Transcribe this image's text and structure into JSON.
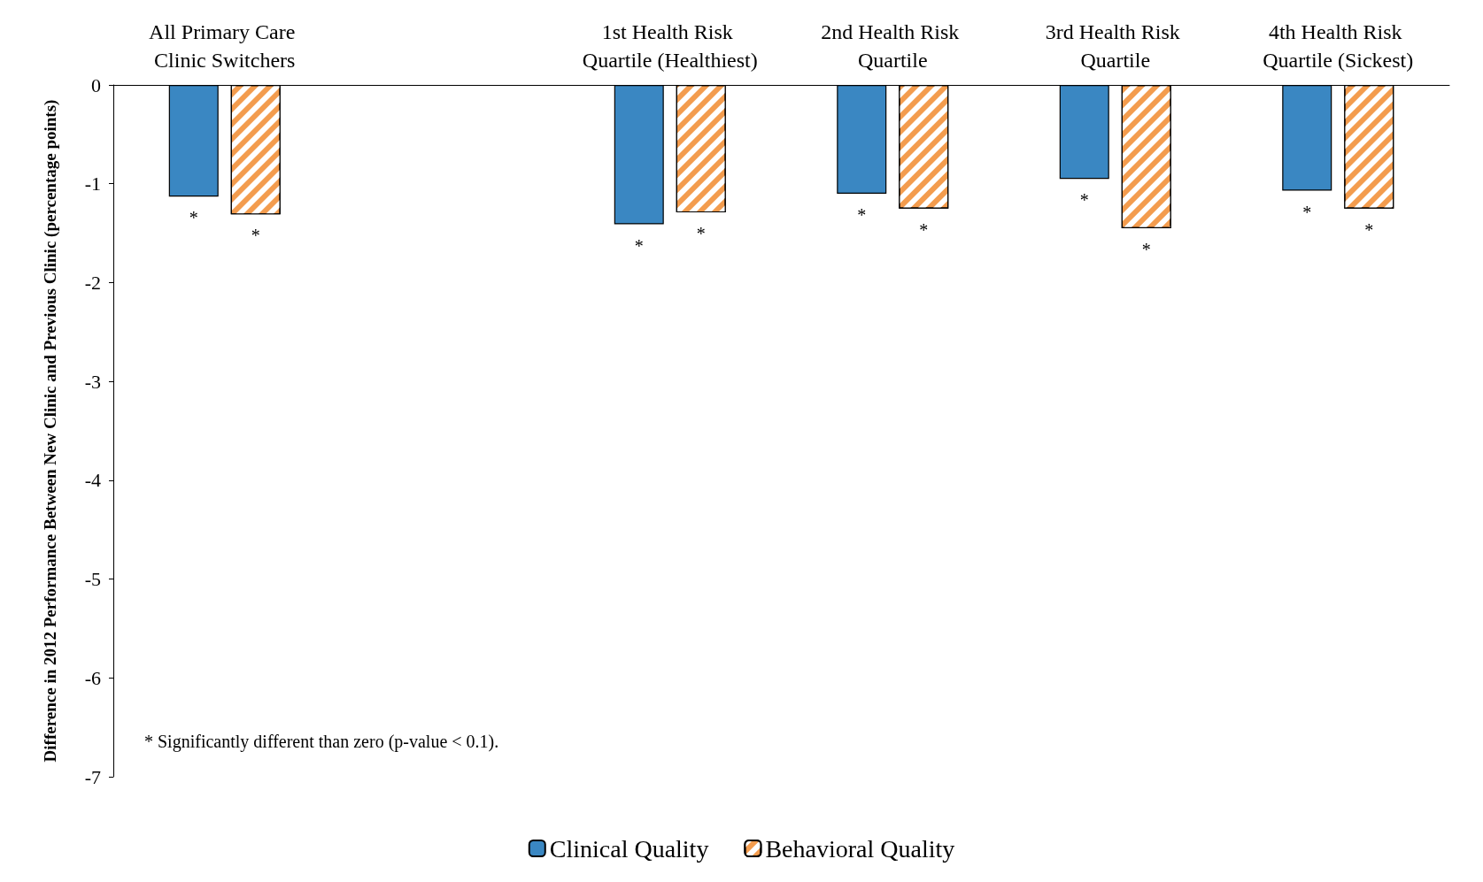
{
  "chart_data": {
    "type": "bar",
    "categories": [
      "All Primary Care Clinic Switchers",
      null,
      "1st Health Risk Quartile (Healthiest)",
      "2nd Health Risk Quartile",
      "3rd Health Risk Quartile",
      "4th Health Risk Quartile (Sickest)"
    ],
    "ylabel": "Difference in 2012 Performance Between New Clinic and Previous Clinic (percentage points)",
    "series": [
      {
        "name": "Clinical Quality",
        "color": "#3a87c2",
        "values": [
          -1.13,
          null,
          -1.41,
          -1.1,
          -0.95,
          -1.07
        ],
        "value_labels": [
          "*",
          null,
          "*",
          "*",
          "*",
          "*"
        ]
      },
      {
        "name": "Behavioral Quality",
        "color": "#f39c4e",
        "values": [
          -1.31,
          null,
          -1.29,
          -1.25,
          -1.45,
          -1.25
        ],
        "value_labels": [
          "*",
          null,
          "*",
          "*",
          "*",
          "*"
        ]
      }
    ],
    "ylim": [
      -7,
      0
    ],
    "yticks": [
      -7,
      -6,
      -5,
      -4,
      -3,
      -2,
      -1,
      0
    ],
    "grid": false,
    "legend": "bottom",
    "annotations": [
      "* Significantly different than zero (p-value < 0.1)."
    ]
  }
}
